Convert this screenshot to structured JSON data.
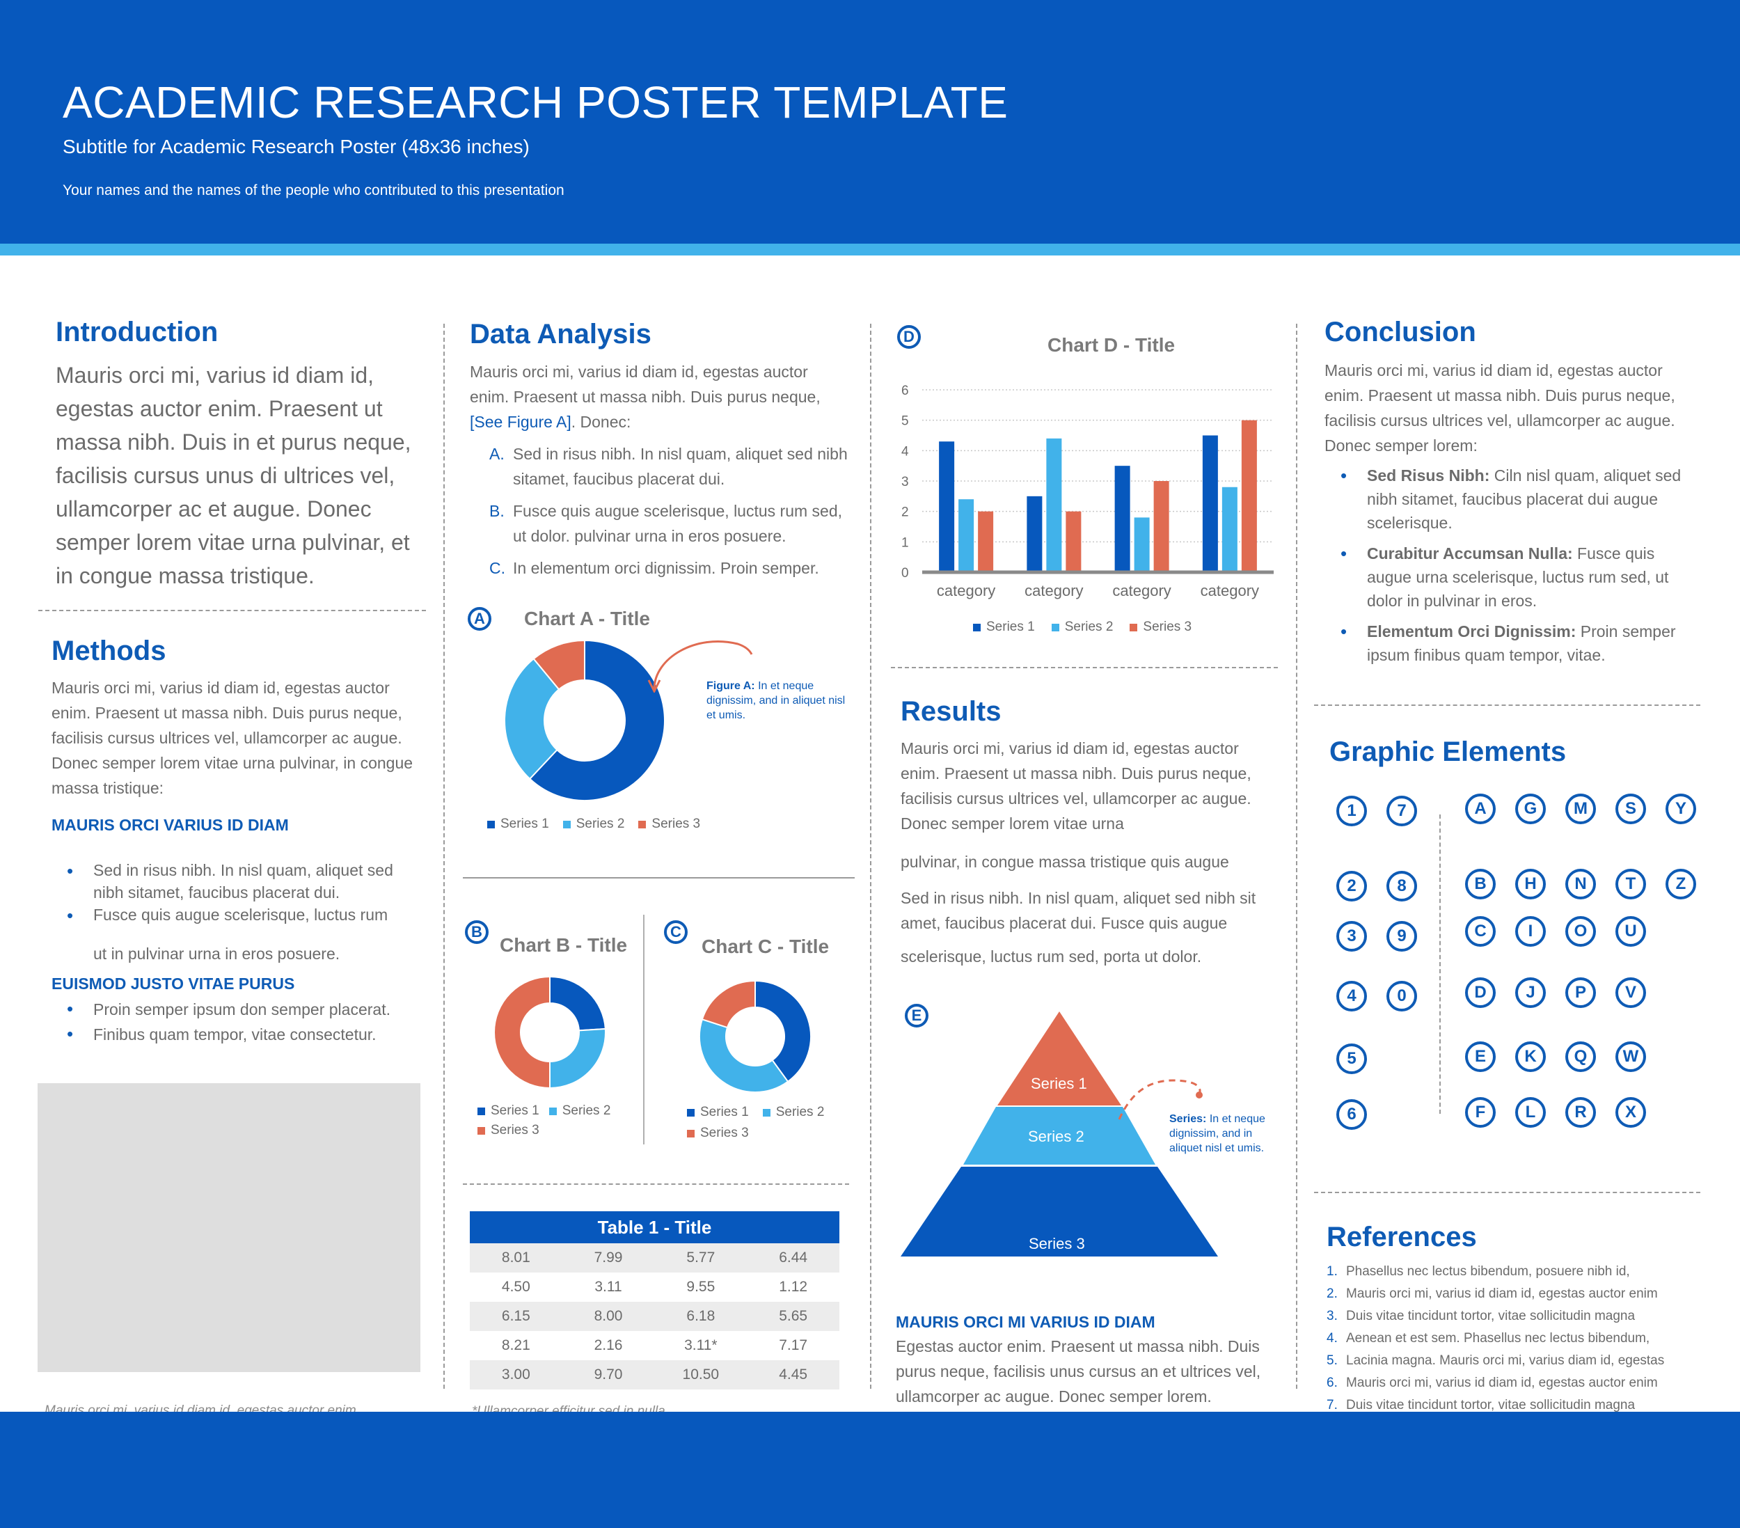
{
  "header": {
    "title": "ACADEMIC RESEARCH POSTER TEMPLATE",
    "subtitle": "Subtitle for Academic Research Poster (48x36 inches)",
    "authors": "Your names and the names of the people who contributed to this presentation"
  },
  "colors": {
    "primary": "#0758bd",
    "light": "#41b2ea",
    "accent": "#e06b51"
  },
  "introduction": {
    "heading": "Introduction",
    "text": "Mauris orci mi, varius id diam id, egestas auctor enim. Praesent ut massa nibh. Duis in et purus neque, facilisis cursus unus di ultrices vel, ullamcorper ac et augue. Donec semper lorem vitae urna pulvinar, et in congue massa tristique."
  },
  "methods": {
    "heading": "Methods",
    "text": "Mauris orci mi, varius id diam id, egestas auctor enim. Praesent ut massa nibh. Duis purus neque, facilisis cursus ultrices vel, ullamcorper ac augue. Donec semper lorem vitae urna pulvinar, in congue massa tristique:",
    "sub1": "MAURIS ORCI VARIUS ID DIAM",
    "bullets1": [
      "Sed in risus nibh. In nisl quam, aliquet sed nibh sitamet, faucibus placerat dui.",
      "Fusce quis augue scelerisque, luctus rum"
    ],
    "bullet1_cont": "ut in pulvinar urna in eros posuere.",
    "sub2": "EUISMOD JUSTO VITAE PURUS",
    "bullets2": [
      "Proin semper ipsum don semper placerat.",
      "Finibus quam tempor, vitae consectetur."
    ],
    "caption": "Mauris orci mi, varius id diam id, egestas auctor enim"
  },
  "data_analysis": {
    "heading": "Data Analysis",
    "text": "Mauris orci mi, varius id diam id, egestas auctor enim. Praesent ut massa nibh. Duis purus neque,",
    "link": "[See Figure A]",
    "text_after": ". Donec:",
    "items": [
      {
        "marker": "A.",
        "text": "Sed in risus nibh. In nisl quam, aliquet sed nibh sitamet, faucibus placerat dui."
      },
      {
        "marker": "B.",
        "text": "Fusce quis augue scelerisque, luctus rum sed, ut dolor. pulvinar urna in eros posuere."
      },
      {
        "marker": "C.",
        "text": "In elementum orci dignissim. Proin semper."
      }
    ]
  },
  "chart_a": {
    "letter": "A",
    "figure_label": "Figure A:",
    "figure_text": "In et neque dignissim, and in aliquet nisl et umis."
  },
  "chart_b": {
    "letter": "B"
  },
  "chart_c": {
    "letter": "C"
  },
  "chart_d": {
    "letter": "D"
  },
  "chart_data": [
    {
      "type": "pie",
      "title": "Chart A - Title",
      "labels": [
        "Series 1",
        "Series 2",
        "Series 3"
      ],
      "values": [
        62,
        27,
        11
      ],
      "colors": [
        "#0758bd",
        "#41b2ea",
        "#e06b51"
      ],
      "donut": true
    },
    {
      "type": "pie",
      "title": "Chart B - Title",
      "labels": [
        "Series 1",
        "Series 2",
        "Series 3"
      ],
      "values": [
        24,
        26,
        50
      ],
      "colors": [
        "#0758bd",
        "#41b2ea",
        "#e06b51"
      ],
      "donut": true
    },
    {
      "type": "pie",
      "title": "Chart C - Title",
      "labels": [
        "Series 1",
        "Series 2",
        "Series 3"
      ],
      "values": [
        40,
        40,
        20
      ],
      "colors": [
        "#0758bd",
        "#41b2ea",
        "#e06b51"
      ],
      "donut": true
    },
    {
      "type": "bar",
      "title": "Chart D - Title",
      "categories": [
        "category",
        "category",
        "category",
        "category"
      ],
      "series": [
        {
          "name": "Series 1",
          "values": [
            4.3,
            2.5,
            3.5,
            4.5
          ],
          "color": "#0758bd"
        },
        {
          "name": "Series 2",
          "values": [
            2.4,
            4.4,
            1.8,
            2.8
          ],
          "color": "#41b2ea"
        },
        {
          "name": "Series 3",
          "values": [
            2.0,
            2.0,
            3.0,
            5.0
          ],
          "color": "#e06b51"
        }
      ],
      "ylim": [
        0,
        6
      ],
      "yticks": [
        "0",
        "1",
        "2",
        "3",
        "4",
        "5",
        "6"
      ],
      "grid": true,
      "legend": "bottom"
    }
  ],
  "table": {
    "title": "Table 1 - Title",
    "rows": [
      [
        "8.01",
        "7.99",
        "5.77",
        "6.44"
      ],
      [
        "4.50",
        "3.11",
        "9.55",
        "1.12"
      ],
      [
        "6.15",
        "8.00",
        "6.18",
        "5.65"
      ],
      [
        "8.21",
        "2.16",
        "3.11*",
        "7.17"
      ],
      [
        "3.00",
        "9.70",
        "10.50",
        "4.45"
      ]
    ],
    "footnote": "*Ullamcorper efficitur sed in nulla"
  },
  "results": {
    "heading": "Results",
    "p1": "Mauris orci mi, varius id diam id, egestas auctor enim. Praesent ut massa nibh. Duis purus neque, facilisis cursus ultrices vel, ullamcorper ac augue. Donec semper lorem vitae urna",
    "p2": "pulvinar, in congue massa tristique quis augue",
    "p3": "Sed in risus nibh. In nisl quam, aliquet sed nibh sit amet, faucibus placerat dui. Fusce quis augue",
    "p4": "scelerisque, luctus rum sed, porta ut dolor.",
    "sub": "MAURIS ORCI MI VARIUS ID DIAM",
    "p5": "Egestas auctor enim. Praesent ut massa nibh. Duis purus neque, facilisis unus cursus an et ultrices vel, ullamcorper ac augue. Donec semper lorem."
  },
  "pyramid": {
    "letter": "E",
    "levels": [
      "Series 1",
      "Series 2",
      "Series 3"
    ],
    "note_label": "Series:",
    "note_text": "In et neque dignissim, and in aliquet nisl et umis."
  },
  "conclusion": {
    "heading": "Conclusion",
    "text": "Mauris orci mi, varius id diam id, egestas auctor enim. Praesent ut massa nibh. Duis purus neque, facilisis cursus ultrices vel, ullamcorper ac augue. Donec semper lorem:",
    "bullets": [
      {
        "bold": "Sed Risus Nibh:",
        "text": " Ciln nisl quam, aliquet sed nibh sitamet, faucibus placerat dui augue scelerisque."
      },
      {
        "bold": "Curabitur Accumsan Nulla:",
        "text": " Fusce quis augue urna scelerisque, luctus rum sed, ut dolor in pulvinar in eros."
      },
      {
        "bold": "Elementum Orci Dignissim:",
        "text": " Proin semper ipsum finibus quam tempor, vitae."
      }
    ]
  },
  "graphic_elements": {
    "heading": "Graphic Elements",
    "numbers": [
      "1",
      "7",
      "2",
      "8",
      "3",
      "9",
      "4",
      "0",
      "5",
      "6"
    ],
    "letters": [
      "A",
      "G",
      "M",
      "S",
      "Y",
      "B",
      "H",
      "N",
      "T",
      "Z",
      "C",
      "I",
      "O",
      "U",
      "D",
      "J",
      "P",
      "V",
      "E",
      "K",
      "Q",
      "W",
      "F",
      "L",
      "R",
      "X"
    ]
  },
  "references": {
    "heading": "References",
    "items": [
      {
        "n": "1.",
        "t": "Phasellus nec lectus bibendum, posuere nibh id,"
      },
      {
        "n": "2.",
        "t": "Mauris orci mi, varius id diam id, egestas auctor enim"
      },
      {
        "n": "3.",
        "t": "Duis vitae tincidunt tortor, vitae sollicitudin magna"
      },
      {
        "n": "4.",
        "t": "Aenean et est sem. Phasellus nec lectus bibendum,"
      },
      {
        "n": "5.",
        "t": "Lacinia magna. Mauris orci mi, varius diam id, egestas"
      },
      {
        "n": "6.",
        "t": "Mauris orci mi, varius id diam id, egestas auctor enim"
      },
      {
        "n": "7.",
        "t": "Duis vitae tincidunt tortor, vitae sollicitudin magna"
      }
    ]
  }
}
